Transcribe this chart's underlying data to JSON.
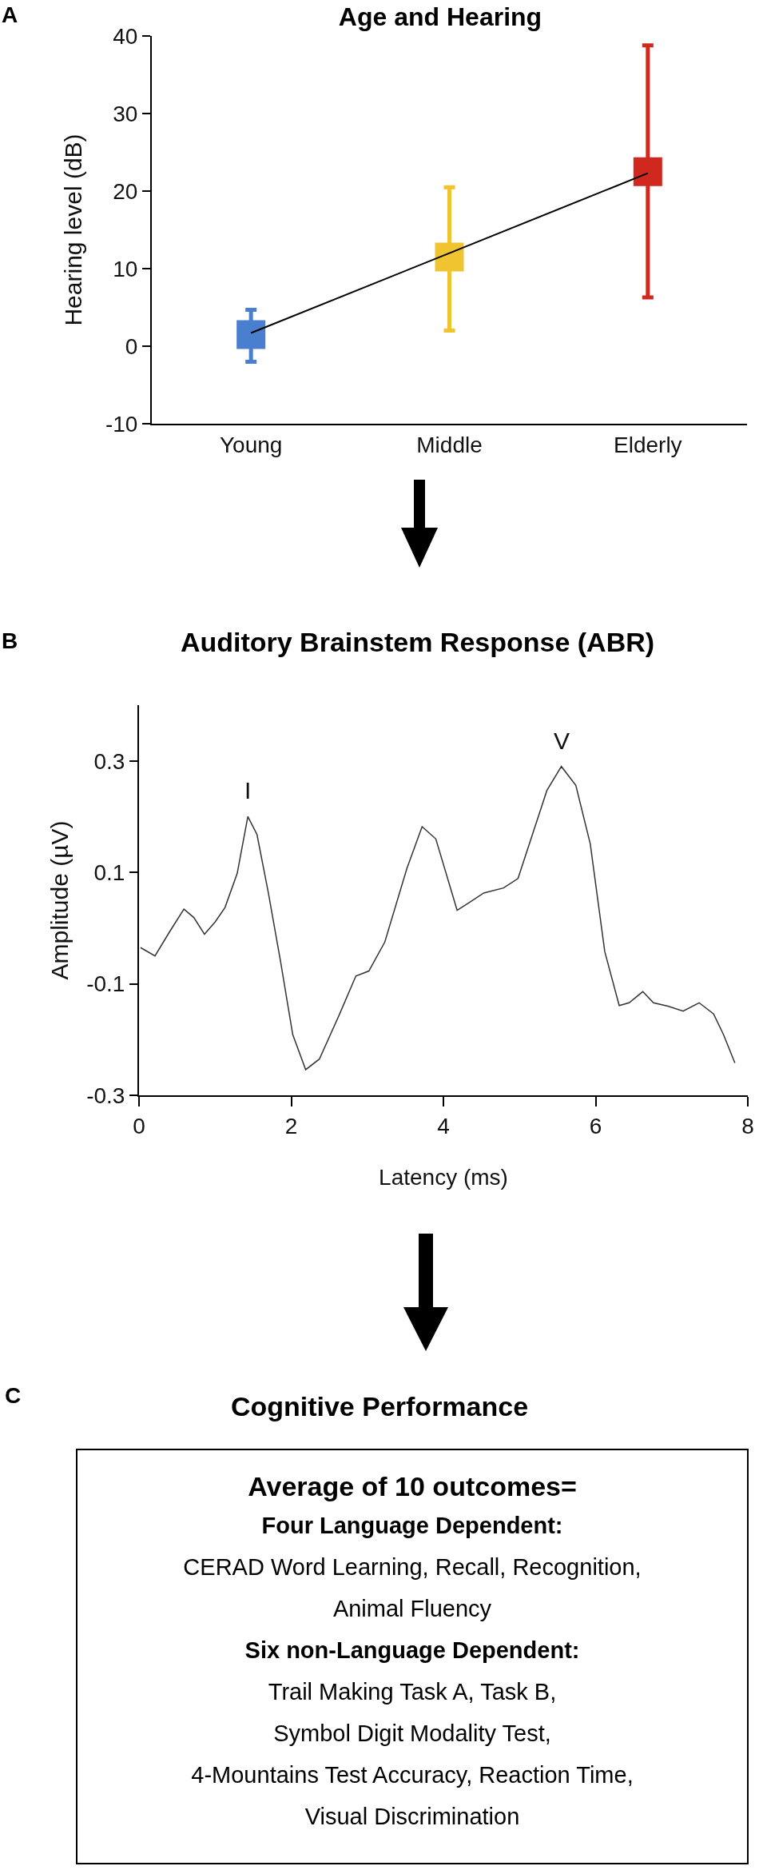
{
  "chart_data": [
    {
      "type": "scatter",
      "title": "Age and Hearing",
      "ylabel": "Hearing level (dB)",
      "categories": [
        "Young",
        "Middle",
        "Elderly"
      ],
      "ylim": [
        -10,
        40
      ],
      "yticks": [
        -10,
        0,
        10,
        20,
        30,
        40
      ],
      "annotations": [
        "A"
      ],
      "series": [
        {
          "type": "scatter",
          "marker": "square",
          "colors": [
            "#4a7fd0",
            "#f0c330",
            "#d0281e"
          ],
          "values": [
            1.5,
            11.5,
            22.5
          ],
          "errors": [
            [
              -2,
              4.7
            ],
            [
              2,
              20.5
            ],
            [
              6.3,
              38.8
            ]
          ]
        },
        {
          "type": "line",
          "marker": "none",
          "color": "#000000",
          "values": [
            1.7,
            12,
            22.3
          ]
        }
      ]
    },
    {
      "type": "line",
      "title": "Auditory Brainstem Response (ABR)",
      "xlabel": "Latency (ms)",
      "ylabel": "Amplitude (µV)",
      "xlim": [
        0,
        8
      ],
      "xticks": [
        0,
        2,
        4,
        6,
        8
      ],
      "ylim": [
        -0.3,
        0.4
      ],
      "yticks": [
        -0.3,
        -0.1,
        0.1,
        0.3
      ],
      "marker": "none",
      "annotations": [
        "B",
        {
          "text": "I",
          "x": 1.43,
          "y": 0.2
        },
        {
          "text": "V",
          "x": 5.55,
          "y": 0.29
        }
      ],
      "series": [
        {
          "color": "#333333",
          "x": [
            0.02,
            0.21,
            0.4,
            0.59,
            0.72,
            0.86,
            1.0,
            1.13,
            1.29,
            1.43,
            1.55,
            1.7,
            1.86,
            2.02,
            2.19,
            2.37,
            2.63,
            2.85,
            3.02,
            3.23,
            3.52,
            3.72,
            3.9,
            4.18,
            4.34,
            4.53,
            4.79,
            4.98,
            5.17,
            5.36,
            5.55,
            5.74,
            5.93,
            6.12,
            6.31,
            6.44,
            6.62,
            6.76,
            6.95,
            7.15,
            7.36,
            7.55,
            7.68,
            7.83
          ],
          "values": [
            -0.035,
            -0.05,
            -0.007,
            0.034,
            0.019,
            -0.011,
            0.011,
            0.037,
            0.098,
            0.2,
            0.168,
            0.063,
            -0.06,
            -0.191,
            -0.254,
            -0.235,
            -0.156,
            -0.086,
            -0.077,
            -0.025,
            0.107,
            0.182,
            0.16,
            0.032,
            0.046,
            0.063,
            0.072,
            0.089,
            0.168,
            0.247,
            0.29,
            0.256,
            0.151,
            -0.042,
            -0.139,
            -0.134,
            -0.114,
            -0.134,
            -0.14,
            -0.149,
            -0.134,
            -0.154,
            -0.191,
            -0.242
          ]
        }
      ]
    },
    {
      "type": "other",
      "title": "Cognitive Performance",
      "annotations": [
        "C",
        "Average of 10 outcomes=",
        "Four Language Dependent:",
        "CERAD Word Learning, Recall, Recognition,",
        "Animal Fluency",
        "Six non-Language Dependent:",
        "Trail Making Task A, Task B,",
        "Symbol Digit Modality Test,",
        "4-Mountains Test Accuracy, Reaction Time,",
        "Visual Discrimination"
      ]
    }
  ]
}
